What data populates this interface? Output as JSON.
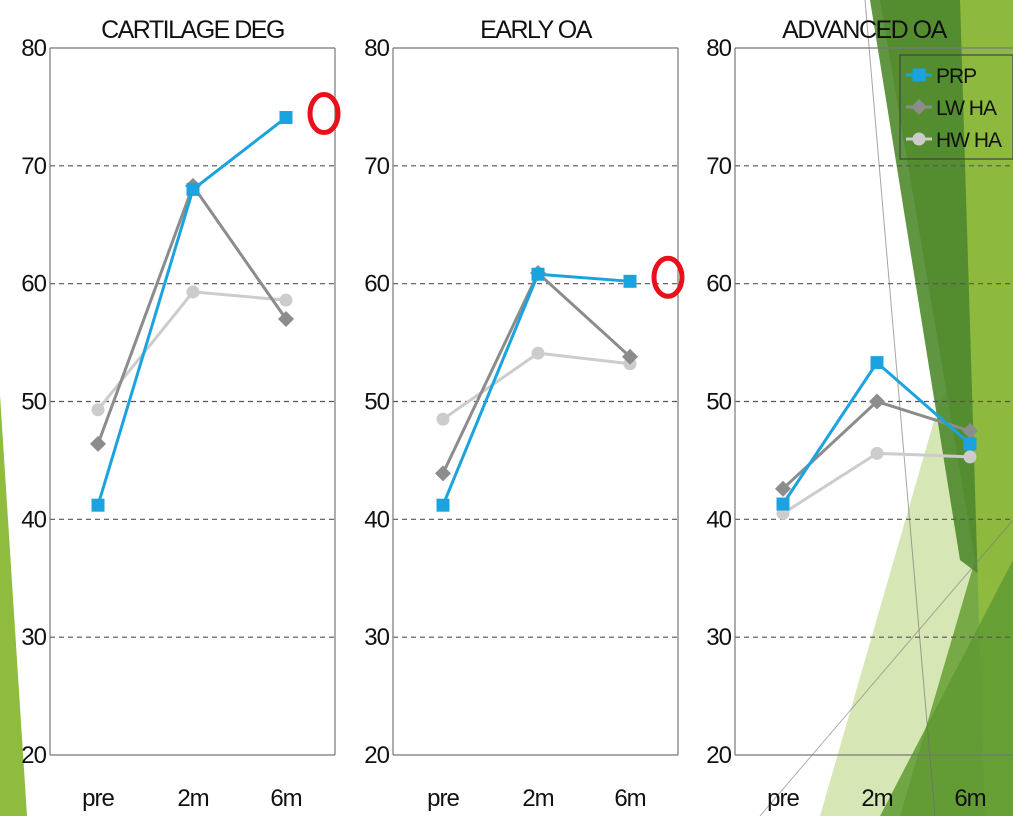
{
  "chart_data": {
    "type": "line",
    "categories": [
      "pre",
      "2m",
      "6m"
    ],
    "ylim": [
      20,
      80
    ],
    "yticks": [
      20,
      30,
      40,
      50,
      60,
      70,
      80
    ],
    "grid": "horizontal-dashed",
    "legend": {
      "placement": "top-right",
      "entries": [
        "PRP",
        "LW HA",
        "HW HA"
      ]
    },
    "colors": {
      "PRP": "#1ba3e0",
      "LW HA": "#8c8c8c",
      "HW HA": "#cccccc",
      "highlight": "#e8101a",
      "accent_green": "#8fbc3f"
    },
    "panels": [
      {
        "title": "CARTILAGE DEG",
        "series": [
          {
            "name": "PRP",
            "values": [
              41.2,
              68.0,
              74.1
            ]
          },
          {
            "name": "LW HA",
            "values": [
              46.4,
              68.3,
              57.0
            ]
          },
          {
            "name": "HW HA",
            "values": [
              49.3,
              59.3,
              58.6
            ]
          }
        ],
        "highlight": {
          "series": "PRP",
          "index": 2
        }
      },
      {
        "title": "EARLY OA",
        "series": [
          {
            "name": "PRP",
            "values": [
              41.2,
              60.8,
              60.2
            ]
          },
          {
            "name": "LW HA",
            "values": [
              43.9,
              60.9,
              53.8
            ]
          },
          {
            "name": "HW HA",
            "values": [
              48.5,
              54.1,
              53.2
            ]
          }
        ],
        "highlight": {
          "series": "PRP",
          "index": 2
        }
      },
      {
        "title": "ADVANCED OA",
        "series": [
          {
            "name": "PRP",
            "values": [
              41.3,
              53.3,
              46.4
            ]
          },
          {
            "name": "LW HA",
            "values": [
              42.6,
              50.0,
              47.5
            ]
          },
          {
            "name": "HW HA",
            "values": [
              40.5,
              45.6,
              45.3
            ]
          }
        ],
        "highlight": null
      }
    ]
  }
}
